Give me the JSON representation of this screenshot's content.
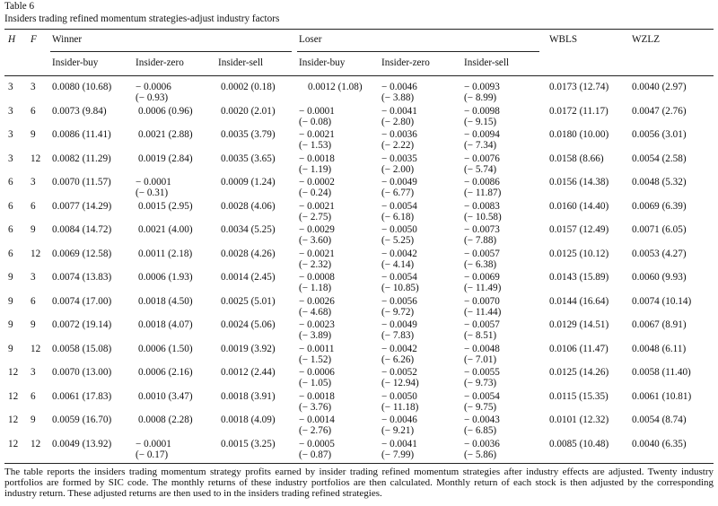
{
  "table_number": "Table 6",
  "title": "Insiders trading refined momentum strategies-adjust industry factors",
  "headers": {
    "H": "H",
    "F": "F",
    "winner": "Winner",
    "loser": "Loser",
    "wbls": "WBLS",
    "wzlz": "WZLZ",
    "insider_buy": "Insider-buy",
    "insider_zero": "Insider-zero",
    "insider_sell": "Insider-sell"
  },
  "rows": [
    {
      "H": "3",
      "F": "3",
      "wb": [
        "0.0080 (10.68)",
        ""
      ],
      "wz": [
        "− 0.0006",
        "(− 0.93)"
      ],
      "ws": [
        "0.0002 (0.18)",
        ""
      ],
      "lb": [
        "0.0012 (1.08)",
        ""
      ],
      "lz": [
        "− 0.0046",
        "(− 3.88)"
      ],
      "ls": [
        "− 0.0093",
        "(− 8.99)"
      ],
      "wbls": "0.0173 (12.74)",
      "wzlz": "0.0040 (2.97)"
    },
    {
      "H": "3",
      "F": "6",
      "wb": [
        "0.0073 (9.84)",
        ""
      ],
      "wz": [
        "0.0006 (0.96)",
        ""
      ],
      "ws": [
        "0.0020 (2.01)",
        ""
      ],
      "lb": [
        "− 0.0001",
        "(− 0.08)"
      ],
      "lz": [
        "− 0.0041",
        "(− 2.80)"
      ],
      "ls": [
        "− 0.0098",
        "(− 9.15)"
      ],
      "wbls": "0.0172 (11.17)",
      "wzlz": "0.0047 (2.76)"
    },
    {
      "H": "3",
      "F": "9",
      "wb": [
        "0.0086 (11.41)",
        ""
      ],
      "wz": [
        "0.0021 (2.88)",
        ""
      ],
      "ws": [
        "0.0035 (3.79)",
        ""
      ],
      "lb": [
        "− 0.0021",
        "(− 1.53)"
      ],
      "lz": [
        "− 0.0036",
        "(− 2.22)"
      ],
      "ls": [
        "− 0.0094",
        "(− 7.34)"
      ],
      "wbls": "0.0180 (10.00)",
      "wzlz": "0.0056 (3.01)"
    },
    {
      "H": "3",
      "F": "12",
      "wb": [
        "0.0082 (11.29)",
        ""
      ],
      "wz": [
        "0.0019 (2.84)",
        ""
      ],
      "ws": [
        "0.0035 (3.65)",
        ""
      ],
      "lb": [
        "− 0.0018",
        "(− 1.19)"
      ],
      "lz": [
        "− 0.0035",
        "(− 2.00)"
      ],
      "ls": [
        "− 0.0076",
        "(− 5.74)"
      ],
      "wbls": "0.0158 (8.66)",
      "wzlz": "0.0054 (2.58)"
    },
    {
      "H": "6",
      "F": "3",
      "wb": [
        "0.0070 (11.57)",
        ""
      ],
      "wz": [
        "− 0.0001",
        "(− 0.31)"
      ],
      "ws": [
        "0.0009 (1.24)",
        ""
      ],
      "lb": [
        "− 0.0002",
        "(− 0.24)"
      ],
      "lz": [
        "− 0.0049",
        "(− 6.77)"
      ],
      "ls": [
        "− 0.0086",
        "(− 11.87)"
      ],
      "wbls": "0.0156 (14.38)",
      "wzlz": "0.0048 (5.32)"
    },
    {
      "H": "6",
      "F": "6",
      "wb": [
        "0.0077 (14.29)",
        ""
      ],
      "wz": [
        "0.0015 (2.95)",
        ""
      ],
      "ws": [
        "0.0028 (4.06)",
        ""
      ],
      "lb": [
        "− 0.0021",
        "(− 2.75)"
      ],
      "lz": [
        "− 0.0054",
        "(− 6.18)"
      ],
      "ls": [
        "− 0.0083",
        "(− 10.58)"
      ],
      "wbls": "0.0160 (14.40)",
      "wzlz": "0.0069 (6.39)"
    },
    {
      "H": "6",
      "F": "9",
      "wb": [
        "0.0084 (14.72)",
        ""
      ],
      "wz": [
        "0.0021 (4.00)",
        ""
      ],
      "ws": [
        "0.0034 (5.25)",
        ""
      ],
      "lb": [
        "− 0.0029",
        "(− 3.60)"
      ],
      "lz": [
        "− 0.0050",
        "(− 5.25)"
      ],
      "ls": [
        "− 0.0073",
        "(− 7.88)"
      ],
      "wbls": "0.0157 (12.49)",
      "wzlz": "0.0071 (6.05)"
    },
    {
      "H": "6",
      "F": "12",
      "wb": [
        "0.0069 (12.58)",
        ""
      ],
      "wz": [
        "0.0011 (2.18)",
        ""
      ],
      "ws": [
        "0.0028 (4.26)",
        ""
      ],
      "lb": [
        "− 0.0021",
        "(− 2.32)"
      ],
      "lz": [
        "− 0.0042",
        "(− 4.14)"
      ],
      "ls": [
        "− 0.0057",
        "(− 6.38)"
      ],
      "wbls": "0.0125 (10.12)",
      "wzlz": "0.0053 (4.27)"
    },
    {
      "H": "9",
      "F": "3",
      "wb": [
        "0.0074 (13.83)",
        ""
      ],
      "wz": [
        "0.0006 (1.93)",
        ""
      ],
      "ws": [
        "0.0014 (2.45)",
        ""
      ],
      "lb": [
        "− 0.0008",
        "(− 1.18)"
      ],
      "lz": [
        "− 0.0054",
        "(− 10.85)"
      ],
      "ls": [
        "− 0.0069",
        "(− 11.49)"
      ],
      "wbls": "0.0143 (15.89)",
      "wzlz": "0.0060 (9.93)"
    },
    {
      "H": "9",
      "F": "6",
      "wb": [
        "0.0074 (17.00)",
        ""
      ],
      "wz": [
        "0.0018 (4.50)",
        ""
      ],
      "ws": [
        "0.0025 (5.01)",
        ""
      ],
      "lb": [
        "− 0.0026",
        "(− 4.68)"
      ],
      "lz": [
        "− 0.0056",
        "(− 9.72)"
      ],
      "ls": [
        "− 0.0070",
        "(− 11.44)"
      ],
      "wbls": "0.0144 (16.64)",
      "wzlz": "0.0074 (10.14)"
    },
    {
      "H": "9",
      "F": "9",
      "wb": [
        "0.0072 (19.14)",
        ""
      ],
      "wz": [
        "0.0018 (4.07)",
        ""
      ],
      "ws": [
        "0.0024 (5.06)",
        ""
      ],
      "lb": [
        "− 0.0023",
        "(− 3.89)"
      ],
      "lz": [
        "− 0.0049",
        "(− 7.83)"
      ],
      "ls": [
        "− 0.0057",
        "(− 8.51)"
      ],
      "wbls": "0.0129 (14.51)",
      "wzlz": "0.0067 (8.91)"
    },
    {
      "H": "9",
      "F": "12",
      "wb": [
        "0.0058 (15.08)",
        ""
      ],
      "wz": [
        "0.0006 (1.50)",
        ""
      ],
      "ws": [
        "0.0019 (3.92)",
        ""
      ],
      "lb": [
        "− 0.0011",
        "(− 1.52)"
      ],
      "lz": [
        "− 0.0042",
        "(− 6.26)"
      ],
      "ls": [
        "− 0.0048",
        "(− 7.01)"
      ],
      "wbls": "0.0106 (11.47)",
      "wzlz": "0.0048 (6.11)"
    },
    {
      "H": "12",
      "F": "3",
      "wb": [
        "0.0070 (13.00)",
        ""
      ],
      "wz": [
        "0.0006 (2.16)",
        ""
      ],
      "ws": [
        "0.0012 (2.44)",
        ""
      ],
      "lb": [
        "− 0.0006",
        "(− 1.05)"
      ],
      "lz": [
        "− 0.0052",
        "(− 12.94)"
      ],
      "ls": [
        "− 0.0055",
        "(− 9.73)"
      ],
      "wbls": "0.0125 (14.26)",
      "wzlz": "0.0058 (11.40)"
    },
    {
      "H": "12",
      "F": "6",
      "wb": [
        "0.0061 (17.83)",
        ""
      ],
      "wz": [
        "0.0010 (3.47)",
        ""
      ],
      "ws": [
        "0.0018 (3.91)",
        ""
      ],
      "lb": [
        "− 0.0018",
        "(− 3.76)"
      ],
      "lz": [
        "− 0.0050",
        "(− 11.18)"
      ],
      "ls": [
        "− 0.0054",
        "(− 9.75)"
      ],
      "wbls": "0.0115 (15.35)",
      "wzlz": "0.0061 (10.81)"
    },
    {
      "H": "12",
      "F": "9",
      "wb": [
        "0.0059 (16.70)",
        ""
      ],
      "wz": [
        "0.0008 (2.28)",
        ""
      ],
      "ws": [
        "0.0018 (4.09)",
        ""
      ],
      "lb": [
        "− 0.0014",
        "(− 2.76)"
      ],
      "lz": [
        "− 0.0046",
        "(− 9.21)"
      ],
      "ls": [
        "− 0.0043",
        "(− 6.85)"
      ],
      "wbls": "0.0101 (12.32)",
      "wzlz": "0.0054 (8.74)"
    },
    {
      "H": "12",
      "F": "12",
      "wb": [
        "0.0049 (13.92)",
        ""
      ],
      "wz": [
        "− 0.0001",
        "(− 0.17)"
      ],
      "ws": [
        "0.0015 (3.25)",
        ""
      ],
      "lb": [
        "− 0.0005",
        "(− 0.87)"
      ],
      "lz": [
        "− 0.0041",
        "(− 7.99)"
      ],
      "ls": [
        "− 0.0036",
        "(− 5.86)"
      ],
      "wbls": "0.0085 (10.48)",
      "wzlz": "0.0040 (6.35)"
    }
  ],
  "note": "The table reports the insiders trading momentum strategy profits earned by insider trading refined momentum strategies after industry effects are adjusted. Twenty industry portfolios are formed by SIC code. The monthly returns of these industry portfolios are then calculated. Monthly return of each stock is then adjusted by the corresponding industry return. These adjusted returns are then used to in the insiders trading refined strategies."
}
